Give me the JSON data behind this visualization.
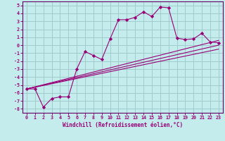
{
  "xlabel": "Windchill (Refroidissement éolien,°C)",
  "background_color": "#c4ecec",
  "grid_color": "#a0cccc",
  "line_color": "#990077",
  "spine_color": "#660066",
  "xlim": [
    -0.5,
    23.5
  ],
  "ylim": [
    -8.5,
    5.5
  ],
  "xticks": [
    0,
    1,
    2,
    3,
    4,
    5,
    6,
    7,
    8,
    9,
    10,
    11,
    12,
    13,
    14,
    15,
    16,
    17,
    18,
    19,
    20,
    21,
    22,
    23
  ],
  "yticks": [
    -8,
    -7,
    -6,
    -5,
    -4,
    -3,
    -2,
    -1,
    0,
    1,
    2,
    3,
    4,
    5
  ],
  "main_x": [
    0,
    1,
    2,
    3,
    4,
    5,
    6,
    7,
    8,
    9,
    10,
    11,
    12,
    13,
    14,
    15,
    16,
    17,
    18,
    19,
    20,
    21,
    22,
    23
  ],
  "main_y": [
    -5.5,
    -5.5,
    -7.8,
    -6.7,
    -6.5,
    -6.5,
    -3.0,
    -0.8,
    -1.3,
    -1.8,
    0.8,
    3.2,
    3.2,
    3.5,
    4.2,
    3.6,
    4.8,
    4.7,
    0.9,
    0.7,
    0.8,
    1.5,
    0.4,
    0.3
  ],
  "line1_x": [
    0,
    23
  ],
  "line1_y": [
    -5.5,
    0.6
  ],
  "line2_x": [
    0,
    23
  ],
  "line2_y": [
    -5.5,
    -0.5
  ],
  "line3_x": [
    0,
    23
  ],
  "line3_y": [
    -5.5,
    0.0
  ]
}
